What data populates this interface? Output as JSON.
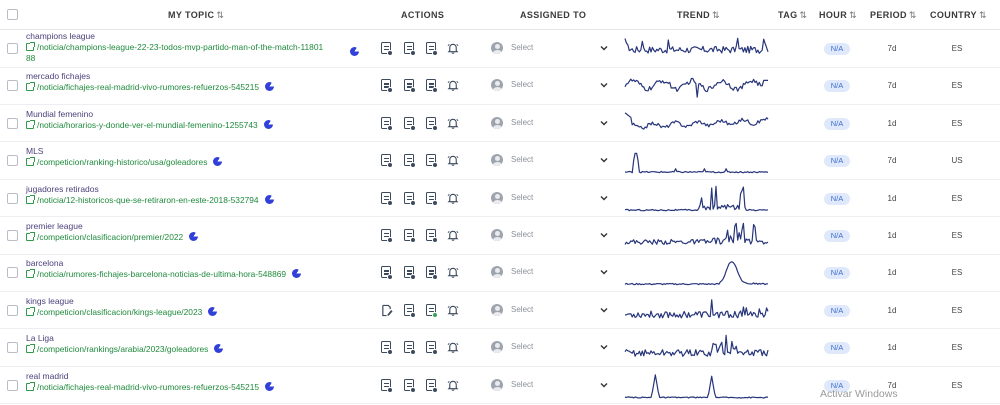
{
  "columns": {
    "my_topic": "MY TOPIC",
    "actions": "ACTIONS",
    "assigned_to": "ASSIGNED TO",
    "trend": "TREND",
    "tag": "TAG",
    "hour": "HOUR",
    "period": "PERIOD",
    "country": "COUNTRY",
    "sort_glyph": "⇅"
  },
  "accent": "#3040d8",
  "link_color": "#1f8a3c",
  "trend_color": "#27357a",
  "rows": [
    {
      "topic": "champions league",
      "url": "/noticia/champions-league-22-23-todos-mvp-partido-man-of-the-match-1180188",
      "url_line1": "/noticia/champions-league-22-23-todos-mvp-partido-man-of-the-match-11801",
      "url_line2": "88",
      "assigned": "Select",
      "hour": "N/A",
      "period": "7d",
      "country": "ES",
      "first_action": "doc",
      "third_action": "doc",
      "pattern": "noisy-spikes"
    },
    {
      "topic": "mercado fichajes",
      "url_line1": "/noticia/fichajes-real-madrid-vivo-rumores-refuerzos-545215",
      "assigned": "Select",
      "hour": "N/A",
      "period": "7d",
      "country": "ES",
      "first_action": "doc",
      "third_action": "doc",
      "pattern": "wavy"
    },
    {
      "topic": "Mundial femenino",
      "url_line1": "/noticia/horarios-y-donde-ver-el-mundial-femenino-1255743",
      "assigned": "Select",
      "hour": "N/A",
      "period": "1d",
      "country": "ES",
      "first_action": "doc",
      "third_action": "doc",
      "pattern": "early-peak"
    },
    {
      "topic": "MLS",
      "url_line1": "/competicion/ranking-historico/usa/goleadores",
      "assigned": "Select",
      "hour": "N/A",
      "period": "7d",
      "country": "US",
      "first_action": "doc",
      "third_action": "doc",
      "pattern": "single-early-spike"
    },
    {
      "topic": "jugadores retirados",
      "url_line1": "/noticia/12-historicos-que-se-retiraron-en-este-2018-532794",
      "assigned": "Select",
      "hour": "N/A",
      "period": "1d",
      "country": "ES",
      "first_action": "doc",
      "third_action": "doc",
      "pattern": "mid-spikes"
    },
    {
      "topic": "premier league",
      "url_line1": "/competicion/clasificacion/premier/2022",
      "assigned": "Select",
      "hour": "N/A",
      "period": "1d",
      "country": "ES",
      "first_action": "doc",
      "third_action": "doc",
      "pattern": "late-spikes"
    },
    {
      "topic": "barcelona",
      "url_line1": "/noticia/rumores-fichajes-barcelona-noticias-de-ultima-hora-548869",
      "assigned": "Select",
      "hour": "N/A",
      "period": "1d",
      "country": "ES",
      "first_action": "doc",
      "third_action": "doc",
      "pattern": "late-peak"
    },
    {
      "topic": "kings league",
      "url_line1": "/competicion/clasificacion/kings-league/2023",
      "assigned": "Select",
      "hour": "N/A",
      "period": "1d",
      "country": "ES",
      "first_action": "pen",
      "third_action": "doc-green",
      "pattern": "noisy-late"
    },
    {
      "topic": "La Liga",
      "url_line1": "/competicion/rankings/arabia/2023/goleadores",
      "assigned": "Select",
      "hour": "N/A",
      "period": "1d",
      "country": "ES",
      "first_action": "doc",
      "third_action": "doc",
      "pattern": "noisy-mid"
    },
    {
      "topic": "real madrid",
      "url_line1": "/noticia/fichajes-real-madrid-vivo-rumores-refuerzos-545215",
      "assigned": "Select",
      "hour": "N/A",
      "period": "7d",
      "country": "ES",
      "first_action": "doc",
      "third_action": "doc",
      "pattern": "two-spikes"
    }
  ],
  "watermark": "Activar Windows"
}
